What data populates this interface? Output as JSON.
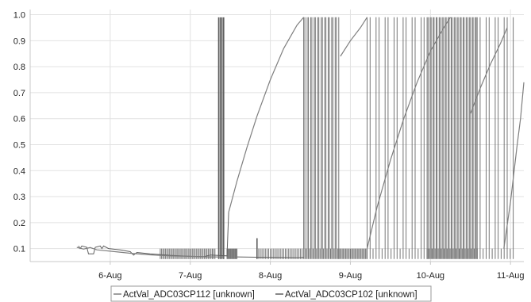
{
  "chart_data": {
    "type": "line",
    "title": "",
    "xlabel": "",
    "ylabel": "",
    "xlim": [
      "2015-08-05T00:00",
      "2015-08-11T04:00"
    ],
    "ylim": [
      0.05,
      1.02
    ],
    "grid": true,
    "legend_position": "bottom",
    "y_ticks": [
      "0.1",
      "0.2",
      "0.3",
      "0.4",
      "0.5",
      "0.6",
      "0.7",
      "0.8",
      "0.9",
      "1.0"
    ],
    "x_ticks": [
      "6-Aug",
      "7-Aug",
      "8-Aug",
      "9-Aug",
      "10-Aug",
      "11-Aug"
    ],
    "colors": {
      "series_a": "#7f7f7f",
      "series_b": "#5f5f5f",
      "grid": "#e2e2e2",
      "axis": "#c8c8c8"
    },
    "series": [
      {
        "name": "ActVal_ADC03CP112 [unknown]",
        "style": "ramps",
        "segments": [
          [
            [
              "2015-08-05T14:00",
              0.105
            ],
            [
              "2015-08-05T16:00",
              0.098
            ],
            [
              "2015-08-05T18:00",
              0.104
            ],
            [
              "2015-08-05T20:00",
              0.095
            ],
            [
              "2015-08-06T00:00",
              0.09
            ],
            [
              "2015-08-06T06:00",
              0.082
            ],
            [
              "2015-08-06T12:00",
              0.076
            ],
            [
              "2015-08-06T18:00",
              0.072
            ],
            [
              "2015-08-07T00:00",
              0.07
            ],
            [
              "2015-08-07T06:00",
              0.068
            ],
            [
              "2015-08-07T10:00",
              0.068
            ]
          ],
          [
            [
              "2015-08-07T11:30",
              0.24
            ],
            [
              "2015-08-07T14:00",
              0.36
            ],
            [
              "2015-08-07T17:00",
              0.49
            ],
            [
              "2015-08-07T20:00",
              0.61
            ],
            [
              "2015-08-08T00:00",
              0.75
            ],
            [
              "2015-08-08T04:00",
              0.87
            ],
            [
              "2015-08-08T08:00",
              0.96
            ],
            [
              "2015-08-08T10:00",
              0.99
            ]
          ],
          [
            [
              "2015-08-08T21:00",
              0.84
            ],
            [
              "2015-08-09T00:00",
              0.9
            ],
            [
              "2015-08-09T03:00",
              0.95
            ],
            [
              "2015-08-09T05:00",
              0.99
            ]
          ],
          [
            [
              "2015-08-09T05:00",
              0.1
            ],
            [
              "2015-08-09T08:00",
              0.26
            ],
            [
              "2015-08-09T12:00",
              0.44
            ],
            [
              "2015-08-09T16:00",
              0.6
            ],
            [
              "2015-08-09T20:00",
              0.74
            ],
            [
              "2015-08-10T00:00",
              0.86
            ],
            [
              "2015-08-10T04:00",
              0.95
            ],
            [
              "2015-08-10T06:00",
              0.99
            ]
          ],
          [
            [
              "2015-08-10T12:00",
              0.62
            ],
            [
              "2015-08-10T15:00",
              0.72
            ],
            [
              "2015-08-10T18:00",
              0.81
            ],
            [
              "2015-08-10T21:00",
              0.89
            ],
            [
              "2015-08-10T23:00",
              0.95
            ]
          ],
          [
            [
              "2015-08-10T22:00",
              0.1
            ],
            [
              "2015-08-11T00:00",
              0.28
            ],
            [
              "2015-08-11T02:00",
              0.5
            ],
            [
              "2015-08-11T03:00",
              0.6
            ],
            [
              "2015-08-11T04:00",
              0.74
            ]
          ]
        ]
      },
      {
        "name": "ActVal_ADC03CP102 [unknown]",
        "style": "switching",
        "baseline": 0.1,
        "low": 0.06,
        "segments": [
          [
            [
              "2015-08-05T14:30",
              0.11
            ],
            [
              "2015-08-05T15:00",
              0.1
            ],
            [
              "2015-08-05T15:30",
              0.11
            ],
            [
              "2015-08-05T17:00",
              0.105
            ],
            [
              "2015-08-05T17:30",
              0.08
            ],
            [
              "2015-08-05T19:00",
              0.08
            ],
            [
              "2015-08-05T19:30",
              0.105
            ],
            [
              "2015-08-05T21:00",
              0.11
            ],
            [
              "2015-08-05T21:30",
              0.1
            ],
            [
              "2015-08-05T22:00",
              0.11
            ],
            [
              "2015-08-05T23:30",
              0.1
            ],
            [
              "2015-08-06T03:00",
              0.095
            ],
            [
              "2015-08-06T06:00",
              0.088
            ],
            [
              "2015-08-06T07:00",
              0.075
            ],
            [
              "2015-08-06T08:00",
              0.085
            ],
            [
              "2015-08-06T12:00",
              0.08
            ],
            [
              "2015-08-06T18:00",
              0.074
            ],
            [
              "2015-08-07T00:00",
              0.07
            ],
            [
              "2015-08-07T04:00",
              0.069
            ],
            [
              "2015-08-07T06:00",
              0.075
            ]
          ],
          [
            [
              "2015-08-07T06:00",
              0.075
            ],
            [
              "2015-08-07T11:00",
              0.072
            ],
            [
              "2015-08-07T11:30",
              0.24
            ]
          ],
          [
            [
              "2015-08-07T14:00",
              0.068
            ],
            [
              "2015-08-08T00:00",
              0.066
            ],
            [
              "2015-08-08T08:00",
              0.065
            ],
            [
              "2015-08-08T10:00",
              0.066
            ]
          ]
        ],
        "spikes": [
          [
            "2015-08-07T08:30",
            0.99
          ],
          [
            "2015-08-07T09:00",
            0.99
          ],
          [
            "2015-08-07T09:30",
            0.99
          ],
          [
            "2015-08-07T10:00",
            0.99
          ],
          [
            "2015-08-07T20:00",
            0.14
          ]
        ],
        "dense_bands": [
          {
            "from": "2015-08-05T00:00",
            "to": "2015-08-05T00:00",
            "high": 0.1,
            "spacing_hours": 1
          },
          {
            "from": "2015-08-06T15:00",
            "to": "2015-08-07T07:30",
            "high": 0.1,
            "spacing_hours": 0.4
          },
          {
            "from": "2015-08-07T11:00",
            "to": "2015-08-07T14:00",
            "high": 0.1,
            "spacing_hours": 0.25
          },
          {
            "from": "2015-08-07T20:00",
            "to": "2015-08-08T09:30",
            "high": 0.1,
            "spacing_hours": 0.5
          },
          {
            "from": "2015-08-08T10:00",
            "to": "2015-08-08T20:30",
            "high": 0.99,
            "spacing_hours": 0.35
          },
          {
            "from": "2015-08-08T20:30",
            "to": "2015-08-09T05:00",
            "high": 0.1,
            "spacing_hours": 0.35
          },
          {
            "from": "2015-08-09T05:00",
            "to": "2015-08-09T23:00",
            "high": 0.99,
            "spacing_hours": 0.9
          },
          {
            "from": "2015-08-09T23:00",
            "to": "2015-08-10T14:00",
            "high": 0.99,
            "spacing_hours": 0.3
          },
          {
            "from": "2015-08-10T14:00",
            "to": "2015-08-11T01:30",
            "high": 0.99,
            "spacing_hours": 0.9
          }
        ]
      }
    ]
  }
}
